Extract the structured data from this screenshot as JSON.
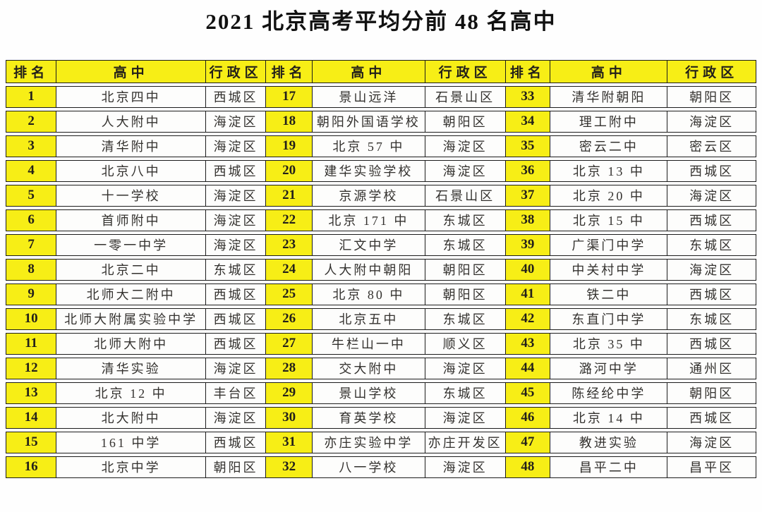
{
  "title": "2021 北京高考平均分前 48 名高中",
  "column_keys": [
    "rank",
    "school",
    "district"
  ],
  "colors": {
    "header_bg": "#f7ee16",
    "cell_bg": "#fdfdfc",
    "border": "#1c1c1c",
    "header_text": "#23201a",
    "cell_text": "#33312e",
    "title_text": "#111111"
  },
  "groups": [
    {
      "headers": [
        "排名",
        "高中",
        "行政区"
      ],
      "rows": [
        [
          "1",
          "北京四中",
          "西城区"
        ],
        [
          "2",
          "人大附中",
          "海淀区"
        ],
        [
          "3",
          "清华附中",
          "海淀区"
        ],
        [
          "4",
          "北京八中",
          "西城区"
        ],
        [
          "5",
          "十一学校",
          "海淀区"
        ],
        [
          "6",
          "首师附中",
          "海淀区"
        ],
        [
          "7",
          "一零一中学",
          "海淀区"
        ],
        [
          "8",
          "北京二中",
          "东城区"
        ],
        [
          "9",
          "北师大二附中",
          "西城区"
        ],
        [
          "10",
          "北师大附属实验中学",
          "西城区"
        ],
        [
          "11",
          "北师大附中",
          "西城区"
        ],
        [
          "12",
          "清华实验",
          "海淀区"
        ],
        [
          "13",
          "北京 12 中",
          "丰台区"
        ],
        [
          "14",
          "北大附中",
          "海淀区"
        ],
        [
          "15",
          "161 中学",
          "西城区"
        ],
        [
          "16",
          "北京中学",
          "朝阳区"
        ]
      ]
    },
    {
      "headers": [
        "排名",
        "高中",
        "行政区"
      ],
      "rows": [
        [
          "17",
          "景山远洋",
          "石景山区"
        ],
        [
          "18",
          "朝阳外国语学校",
          "朝阳区"
        ],
        [
          "19",
          "北京 57 中",
          "海淀区"
        ],
        [
          "20",
          "建华实验学校",
          "海淀区"
        ],
        [
          "21",
          "京源学校",
          "石景山区"
        ],
        [
          "22",
          "北京 171 中",
          "东城区"
        ],
        [
          "23",
          "汇文中学",
          "东城区"
        ],
        [
          "24",
          "人大附中朝阳",
          "朝阳区"
        ],
        [
          "25",
          "北京 80 中",
          "朝阳区"
        ],
        [
          "26",
          "北京五中",
          "东城区"
        ],
        [
          "27",
          "牛栏山一中",
          "顺义区"
        ],
        [
          "28",
          "交大附中",
          "海淀区"
        ],
        [
          "29",
          "景山学校",
          "东城区"
        ],
        [
          "30",
          "育英学校",
          "海淀区"
        ],
        [
          "31",
          "亦庄实验中学",
          "亦庄开发区"
        ],
        [
          "32",
          "八一学校",
          "海淀区"
        ]
      ]
    },
    {
      "headers": [
        "排名",
        "高中",
        "行政区"
      ],
      "rows": [
        [
          "33",
          "清华附朝阳",
          "朝阳区"
        ],
        [
          "34",
          "理工附中",
          "海淀区"
        ],
        [
          "35",
          "密云二中",
          "密云区"
        ],
        [
          "36",
          "北京 13 中",
          "西城区"
        ],
        [
          "37",
          "北京 20 中",
          "海淀区"
        ],
        [
          "38",
          "北京 15 中",
          "西城区"
        ],
        [
          "39",
          "广渠门中学",
          "东城区"
        ],
        [
          "40",
          "中关村中学",
          "海淀区"
        ],
        [
          "41",
          "铁二中",
          "西城区"
        ],
        [
          "42",
          "东直门中学",
          "东城区"
        ],
        [
          "43",
          "北京 35 中",
          "西城区"
        ],
        [
          "44",
          "潞河中学",
          "通州区"
        ],
        [
          "45",
          "陈经纶中学",
          "朝阳区"
        ],
        [
          "46",
          "北京 14 中",
          "西城区"
        ],
        [
          "47",
          "教进实验",
          "海淀区"
        ],
        [
          "48",
          "昌平二中",
          "昌平区"
        ]
      ]
    }
  ]
}
